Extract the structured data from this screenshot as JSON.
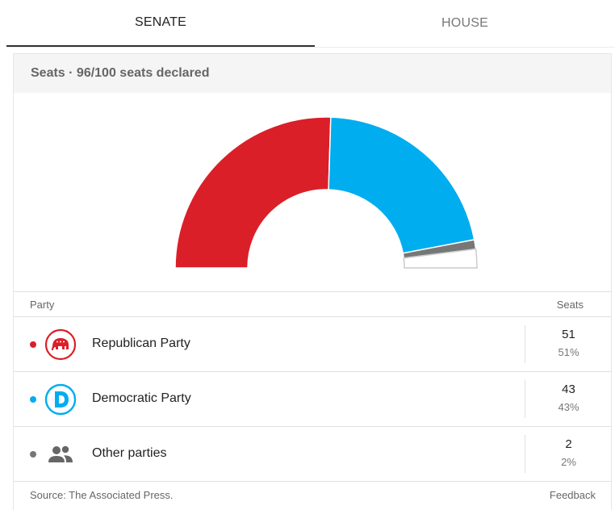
{
  "tabs": [
    {
      "label": "SENATE",
      "active": true
    },
    {
      "label": "HOUSE",
      "active": false
    }
  ],
  "card": {
    "header": "Seats · 96/100 seats declared"
  },
  "chart_data": {
    "type": "pie",
    "variant": "half-donut",
    "total_seats": 100,
    "slices": [
      {
        "label": "Republican Party",
        "value": 51,
        "color": "#da1f28"
      },
      {
        "label": "Democratic Party",
        "value": 43,
        "color": "#00adef"
      },
      {
        "label": "Other parties",
        "value": 2,
        "color": "#777777"
      },
      {
        "label": "Undeclared",
        "value": 4,
        "color": "#ffffff"
      }
    ]
  },
  "table": {
    "header_party": "Party",
    "header_seats": "Seats",
    "rows": [
      {
        "name": "Republican Party",
        "seats": "51",
        "pct": "51%",
        "color": "#da1f28",
        "icon": "republican-elephant-icon"
      },
      {
        "name": "Democratic Party",
        "seats": "43",
        "pct": "43%",
        "color": "#00adef",
        "icon": "democrat-d-icon"
      },
      {
        "name": "Other parties",
        "seats": "2",
        "pct": "2%",
        "color": "#777777",
        "icon": "people-icon"
      }
    ]
  },
  "footer": {
    "source": "Source: The Associated Press.",
    "feedback": "Feedback"
  }
}
